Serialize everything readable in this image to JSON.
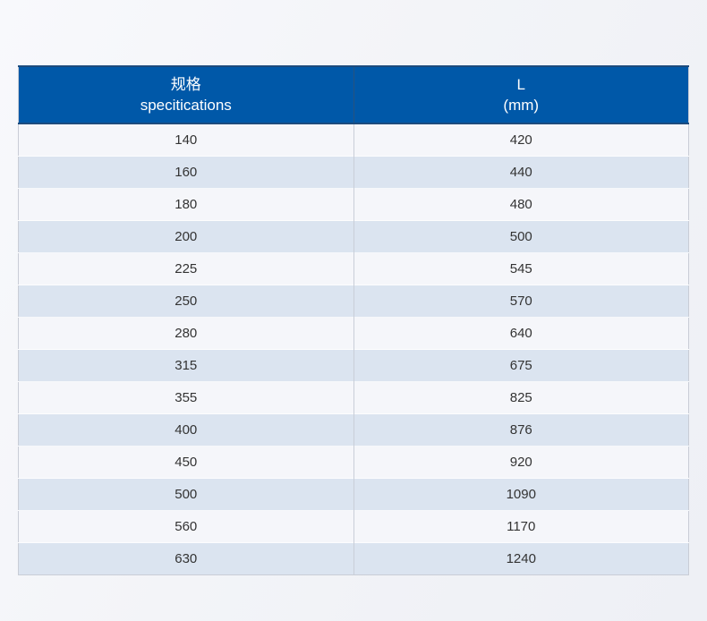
{
  "table": {
    "header": {
      "spec": {
        "line1": "规格",
        "line2": "specitications"
      },
      "length": {
        "line1": "L",
        "line2": "(mm)"
      }
    },
    "rows": [
      [
        "140",
        "420"
      ],
      [
        "160",
        "440"
      ],
      [
        "180",
        "480"
      ],
      [
        "200",
        "500"
      ],
      [
        "225",
        "545"
      ],
      [
        "250",
        "570"
      ],
      [
        "280",
        "640"
      ],
      [
        "315",
        "675"
      ],
      [
        "355",
        "825"
      ],
      [
        "400",
        "876"
      ],
      [
        "450",
        "920"
      ],
      [
        "500",
        "1090"
      ],
      [
        "560",
        "1170"
      ],
      [
        "630",
        "1240"
      ]
    ]
  },
  "colors": {
    "header_bg": "#0058a8",
    "header_text": "#ffffff",
    "header_border": "#1d4b7d",
    "row_light": "#f5f6fa",
    "row_blue": "#dbe4f0",
    "body_text": "#333333",
    "column_divider": "#c9ced8",
    "outer_border": "#c9cdd6",
    "page_bg": "#f3f4f8"
  },
  "chart_data": {
    "type": "table",
    "title": "",
    "columns": [
      "规格 specitications",
      "L (mm)"
    ],
    "rows": [
      [
        140,
        420
      ],
      [
        160,
        440
      ],
      [
        180,
        480
      ],
      [
        200,
        500
      ],
      [
        225,
        545
      ],
      [
        250,
        570
      ],
      [
        280,
        640
      ],
      [
        315,
        675
      ],
      [
        355,
        825
      ],
      [
        400,
        876
      ],
      [
        450,
        920
      ],
      [
        500,
        1090
      ],
      [
        560,
        1170
      ],
      [
        630,
        1240
      ]
    ]
  }
}
